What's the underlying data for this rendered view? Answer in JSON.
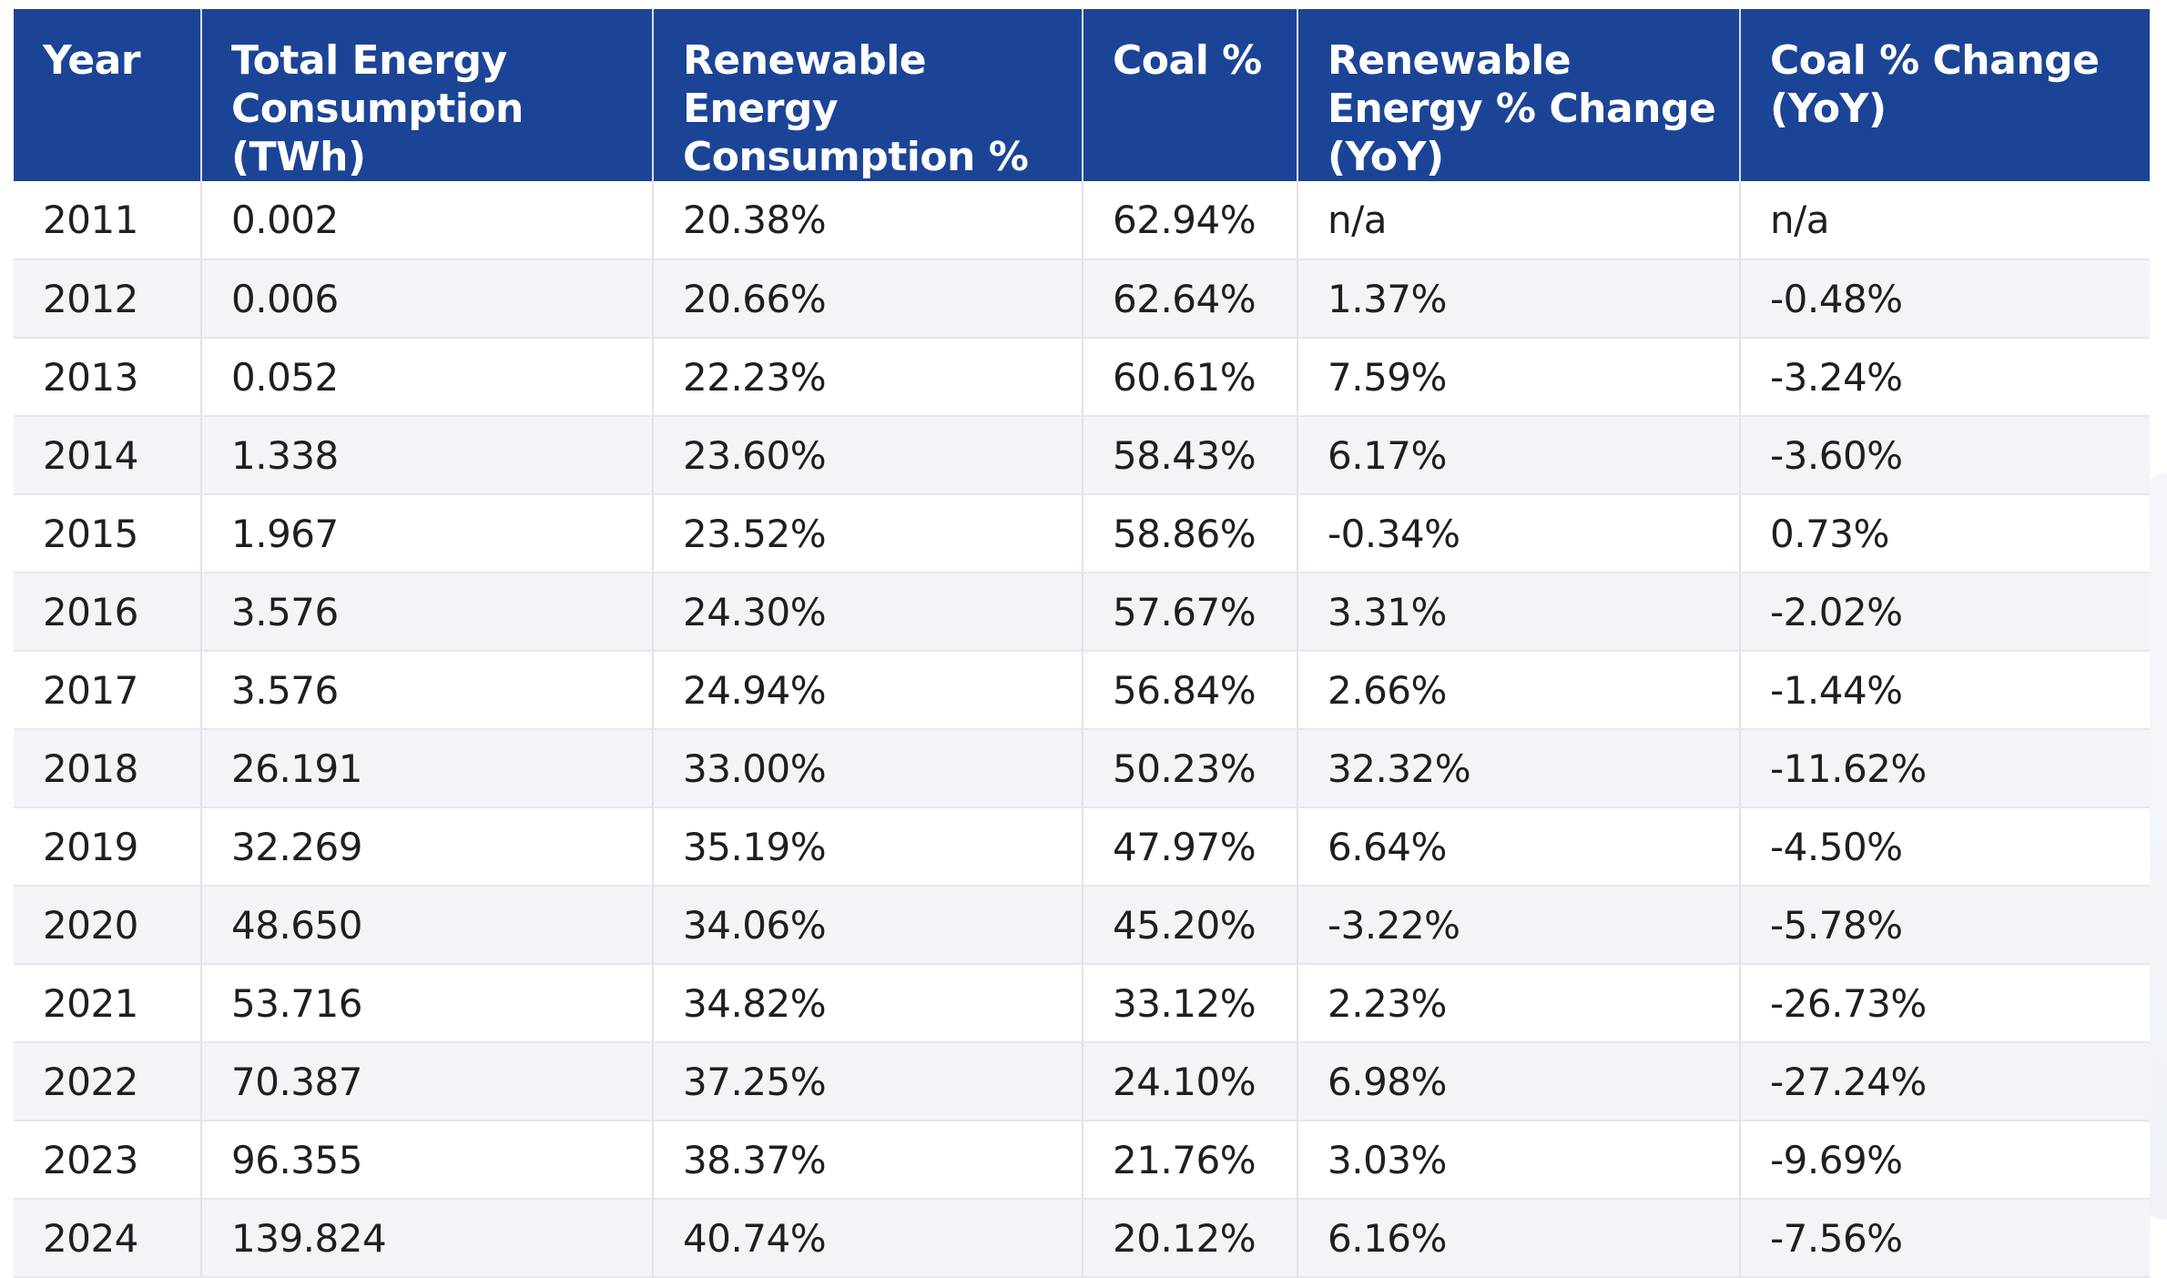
{
  "chart_data": {
    "type": "table",
    "columns": [
      "Year",
      "Total Energy Consumption (TWh)",
      "Renewable Energy Consumption %",
      "Coal %",
      "Renewable Energy % Change (YoY)",
      "Coal % Change (YoY)"
    ],
    "rows": [
      [
        "2011",
        "0.002",
        "20.38%",
        "62.94%",
        "n/a",
        "n/a"
      ],
      [
        "2012",
        "0.006",
        "20.66%",
        "62.64%",
        "1.37%",
        "-0.48%"
      ],
      [
        "2013",
        "0.052",
        "22.23%",
        "60.61%",
        "7.59%",
        "-3.24%"
      ],
      [
        "2014",
        "1.338",
        "23.60%",
        "58.43%",
        "6.17%",
        "-3.60%"
      ],
      [
        "2015",
        "1.967",
        "23.52%",
        "58.86%",
        "-0.34%",
        "0.73%"
      ],
      [
        "2016",
        "3.576",
        "24.30%",
        "57.67%",
        "3.31%",
        "-2.02%"
      ],
      [
        "2017",
        "3.576",
        "24.94%",
        "56.84%",
        "2.66%",
        "-1.44%"
      ],
      [
        "2018",
        "26.191",
        "33.00%",
        "50.23%",
        "32.32%",
        "-11.62%"
      ],
      [
        "2019",
        "32.269",
        "35.19%",
        "47.97%",
        "6.64%",
        "-4.50%"
      ],
      [
        "2020",
        "48.650",
        "34.06%",
        "45.20%",
        "-3.22%",
        "-5.78%"
      ],
      [
        "2021",
        "53.716",
        "34.82%",
        "33.12%",
        "2.23%",
        "-26.73%"
      ],
      [
        "2022",
        "70.387",
        "37.25%",
        "24.10%",
        "6.98%",
        "-27.24%"
      ],
      [
        "2023",
        "96.355",
        "38.37%",
        "21.76%",
        "3.03%",
        "-9.69%"
      ],
      [
        "2024",
        "139.824",
        "40.74%",
        "20.12%",
        "6.16%",
        "-7.56%"
      ]
    ],
    "header_color": "#1c4496",
    "stripe_color": "#f2f4f7"
  }
}
